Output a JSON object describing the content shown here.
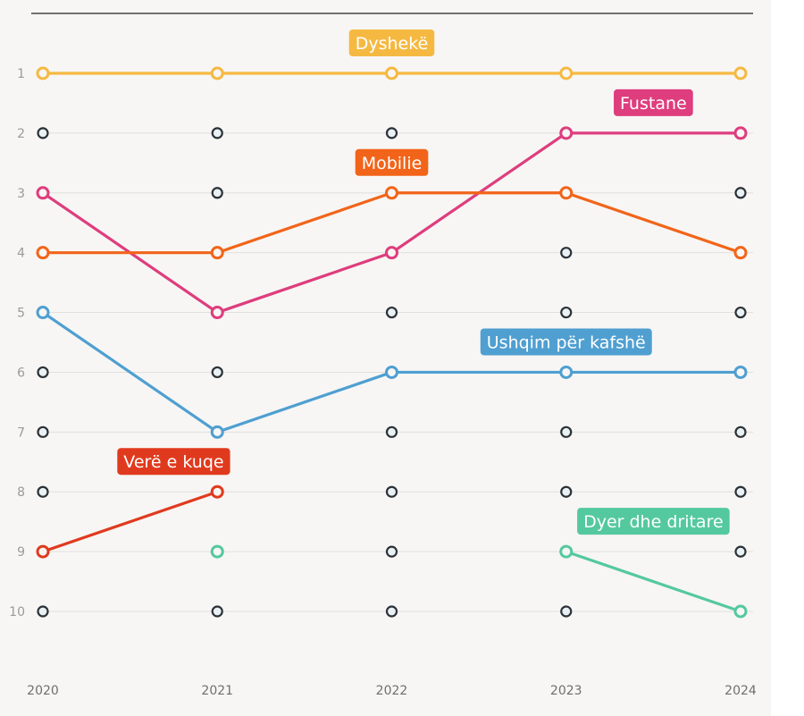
{
  "chart_data": {
    "type": "line",
    "title": "",
    "xlabel": "",
    "ylabel": "",
    "x": [
      "2020",
      "2021",
      "2022",
      "2023",
      "2024"
    ],
    "y_ticks": [
      "1",
      "2",
      "3",
      "4",
      "5",
      "6",
      "7",
      "8",
      "9",
      "10"
    ],
    "ylim": [
      1,
      10
    ],
    "y_inverted": true,
    "grid": true,
    "series": [
      {
        "name": "Dyshekë",
        "color": "#f5b942",
        "values": [
          1,
          1,
          1,
          1,
          1
        ],
        "label_at": 2
      },
      {
        "name": "Fustane",
        "color": "#de3d7e",
        "values": [
          3,
          5,
          4,
          2,
          2
        ],
        "label_at": 3.5
      },
      {
        "name": "Mobilie",
        "color": "#f26419",
        "values": [
          4,
          4,
          3,
          3,
          4
        ],
        "label_at": 2
      },
      {
        "name": "Ushqim për kafshë",
        "color": "#4f9fd1",
        "values": [
          5,
          7,
          6,
          6,
          6
        ],
        "label_at": 3
      },
      {
        "name": "Verë e kuqe",
        "color": "#e03a1e",
        "values": [
          9,
          8,
          null,
          null,
          null
        ],
        "label_at": 0.75
      },
      {
        "name": "Dyer dhe dritare",
        "color": "#54c99e",
        "values": [
          null,
          9,
          null,
          9,
          10
        ],
        "label_at": 3.5
      }
    ],
    "empty_marker_color": "#2b3238"
  }
}
